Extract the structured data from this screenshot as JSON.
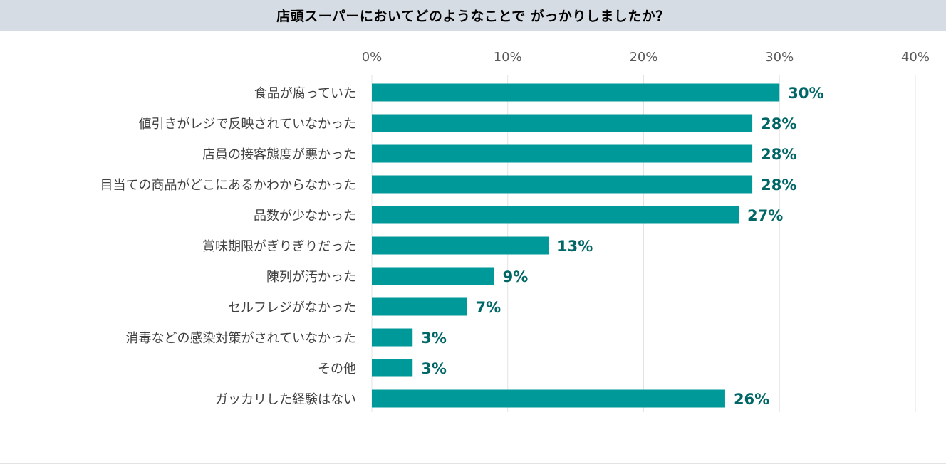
{
  "title": "店頭スーパーにおいてどのようなことで がっかりしましたか？",
  "chart_data": {
    "type": "bar",
    "orientation": "horizontal",
    "title": "店頭スーパーにおいてどのようなことで がっかりしましたか？",
    "categories": [
      "食品が腐っていた",
      "値引きがレジで反映されていなかった",
      "店員の接客態度が悪かった",
      "目当ての商品がどこにあるかわからなかった",
      "品数が少なかった",
      "賞味期限がぎりぎりだった",
      "陳列が汚かった",
      "セルフレジがなかった",
      "消毒などの感染対策がされていなかった",
      "その他",
      "ガッカリした経験はない"
    ],
    "values": [
      30,
      28,
      28,
      28,
      27,
      13,
      9,
      7,
      3,
      3,
      26
    ],
    "value_labels": [
      "30%",
      "28%",
      "28%",
      "28%",
      "27%",
      "13%",
      "9%",
      "7%",
      "3%",
      "3%",
      "26%"
    ],
    "xlim": [
      0,
      40
    ],
    "x_ticks": [
      0,
      10,
      20,
      30,
      40
    ],
    "x_tick_labels": [
      "0%",
      "10%",
      "20%",
      "30%",
      "40%"
    ],
    "axis_position": "top",
    "grid": true,
    "bar_color": "#009999",
    "label_color": "#006666",
    "xlabel": "",
    "ylabel": ""
  }
}
